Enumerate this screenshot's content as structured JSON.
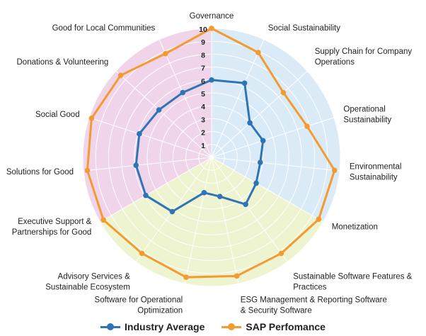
{
  "chart_data": {
    "type": "radar",
    "categories": [
      "Governance",
      "Social Sustainability",
      "Supply Chain for Company\nOperations",
      "Operational\nSustainability",
      "Environmental\nSustainability",
      "Monetization",
      "Sustainable Software Features &\nPractices",
      "ESG Management & Reporting Software\n& Security Software",
      "Software for Operational\nOptimization",
      "Advisory Services &\nSustainable Ecosystem",
      "Executive Support &\nPartnerships for Good",
      "Solutions for Good",
      "Social Good",
      "Donations & Volunteering",
      "Good for Local Communities"
    ],
    "series": [
      {
        "name": "Industry Average",
        "color": "#2e75b6",
        "values": [
          6.0,
          6.3,
          4.0,
          4.2,
          3.8,
          4.0,
          4.5,
          3.1,
          2.8,
          5.2,
          5.9,
          5.9,
          5.9,
          5.5,
          5.5
        ]
      },
      {
        "name": "SAP Perfomance",
        "color": "#f29b30",
        "values": [
          10,
          8.9,
          7.5,
          7.8,
          9.6,
          9.6,
          9.2,
          9.4,
          9.5,
          9.2,
          9.7,
          9.7,
          9.8,
          9.5,
          8.8
        ]
      }
    ],
    "r_ticks": [
      "1",
      "2",
      "3",
      "4",
      "5",
      "6",
      "7",
      "8",
      "9",
      "10"
    ],
    "r_range": [
      0,
      10
    ],
    "background_sectors": [
      {
        "from": "Governance",
        "to": "Monetization",
        "color": "#dbeaf7"
      },
      {
        "from": "Monetization",
        "to": "Executive Support &\nPartnerships for Good",
        "color": "#eef3d0"
      },
      {
        "from": "Executive Support &\nPartnerships for Good",
        "to": "Governance",
        "color": "#f0d4ea"
      }
    ],
    "legend_position": "bottom",
    "grid_color": "#ffffff"
  }
}
